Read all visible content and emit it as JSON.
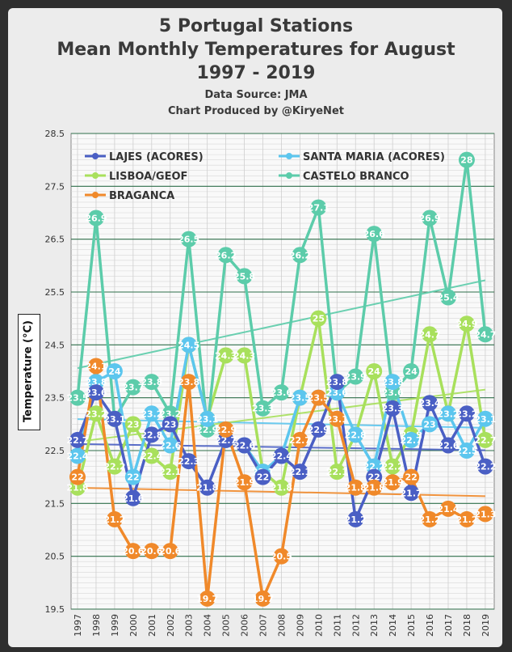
{
  "title": {
    "line1": "5 Portugal Stations",
    "line2": "Mean Monthly Temperatures for August",
    "line3": "1997 - 2019",
    "source": "Data Source: JMA",
    "credit": "Chart Produced by @KiryeNet"
  },
  "chart_data": {
    "type": "line",
    "ylabel": "Temperature (°C)",
    "xlabel": "",
    "ylim": [
      19.5,
      28.5
    ],
    "yticks": [
      "19.5",
      "20.5",
      "21.5",
      "22.5",
      "23.5",
      "24.5",
      "25.5",
      "26.5",
      "27.5",
      "28.5"
    ],
    "categories": [
      "1997",
      "1998",
      "1999",
      "2000",
      "2001",
      "2002",
      "2003",
      "2004",
      "2005",
      "2006",
      "2007",
      "2008",
      "2009",
      "2010",
      "2011",
      "2012",
      "2013",
      "2014",
      "2015",
      "2016",
      "2017",
      "2018",
      "2019"
    ],
    "grid": true,
    "legend_position": "top",
    "trendlines": true,
    "series": [
      {
        "name": "LAJES (ACORES)",
        "color": "#4a5fc4",
        "values": [
          22.7,
          23.6,
          23.1,
          21.6,
          22.8,
          23.0,
          22.3,
          21.8,
          22.7,
          22.6,
          22.0,
          22.4,
          22.1,
          22.9,
          23.8,
          21.2,
          22.0,
          23.3,
          21.7,
          23.4,
          22.6,
          23.2,
          22.2
        ],
        "labels": [
          "22.7",
          "23.6",
          "23.1",
          "21.6",
          "22.8",
          "23",
          "22.3",
          "21.8",
          "22.7",
          "22.6",
          "22",
          "22.4",
          "22.1",
          "22.9",
          "23.8",
          "21.2",
          "22",
          "23.3",
          "21.7",
          "23.4",
          "22.6",
          "23.2",
          "22.2"
        ]
      },
      {
        "name": "SANTA MARIA (ACORES)",
        "color": "#5cc6ee",
        "values": [
          22.4,
          23.8,
          24.0,
          22.0,
          23.2,
          22.6,
          24.5,
          23.1,
          22.7,
          22.6,
          22.1,
          22.4,
          23.5,
          23.5,
          23.6,
          22.8,
          22.2,
          23.8,
          22.7,
          23.0,
          23.2,
          22.5,
          23.1
        ],
        "labels": [
          "22.4",
          "23.8",
          "24",
          "22",
          "23.2",
          "22.6",
          "24.5",
          "23.1",
          "22.7",
          "22.6",
          "22.1",
          "22.4",
          "23.5",
          "23.5",
          "23.6",
          "22.8",
          "22.2",
          "23.8",
          "22.7",
          "23",
          "23.2",
          "22.5",
          "23.1"
        ]
      },
      {
        "name": "LISBOA/GEOF",
        "color": "#a8e05c",
        "values": [
          21.8,
          23.2,
          22.2,
          23.0,
          22.4,
          22.1,
          24.5,
          23.1,
          24.3,
          24.3,
          22.1,
          21.8,
          23.5,
          25.0,
          22.1,
          22.8,
          24.0,
          22.2,
          22.8,
          24.7,
          23.2,
          24.9,
          22.7
        ],
        "labels": [
          "21.8",
          "23.2",
          "22.2",
          "23",
          "22.4",
          "22.1",
          "24.5",
          "23.1",
          "24.3",
          "24.3",
          "22.1",
          "21.8",
          "23.5",
          "25",
          "22.1",
          "22.8",
          "24",
          "22.2",
          "22.8",
          "24.7",
          "23.2",
          "24.9",
          "22.7"
        ]
      },
      {
        "name": "CASTELO BRANCO",
        "color": "#5cccaa",
        "values": [
          23.5,
          26.9,
          23.1,
          23.7,
          23.8,
          23.2,
          26.5,
          22.9,
          26.2,
          25.8,
          23.3,
          23.6,
          26.2,
          27.1,
          23.6,
          23.9,
          26.6,
          23.6,
          24.0,
          26.9,
          25.4,
          28.0,
          24.7
        ],
        "labels": [
          "23.5",
          "26.9",
          "23.1",
          "23.7",
          "23.8",
          "23.2",
          "26.5",
          "22.9",
          "26.2",
          "25.8",
          "23.3",
          "23.6",
          "26.2",
          "27.1",
          "23.6",
          "23.9",
          "26.6",
          "23.6",
          "24",
          "26.9",
          "25.4",
          "28",
          "24.7"
        ]
      },
      {
        "name": "BRAGANCA",
        "color": "#f0892a",
        "values": [
          22.0,
          24.1,
          21.2,
          20.6,
          20.6,
          20.6,
          23.8,
          19.7,
          22.9,
          21.9,
          19.7,
          20.5,
          22.7,
          23.5,
          23.1,
          21.8,
          21.8,
          21.9,
          22.0,
          21.2,
          21.4,
          21.2,
          21.3
        ],
        "labels": [
          "22",
          "24.1",
          "21.2",
          "20.6",
          "20.6",
          "20.6",
          "23.8",
          "19.7",
          "22.9",
          "21.9",
          "19.7",
          "20.5",
          "22.7",
          "23.5",
          "23.1",
          "21.8",
          "21.8",
          "21.9",
          "22",
          "21.2",
          "21.4",
          "21.2",
          "21.3"
        ]
      }
    ]
  }
}
